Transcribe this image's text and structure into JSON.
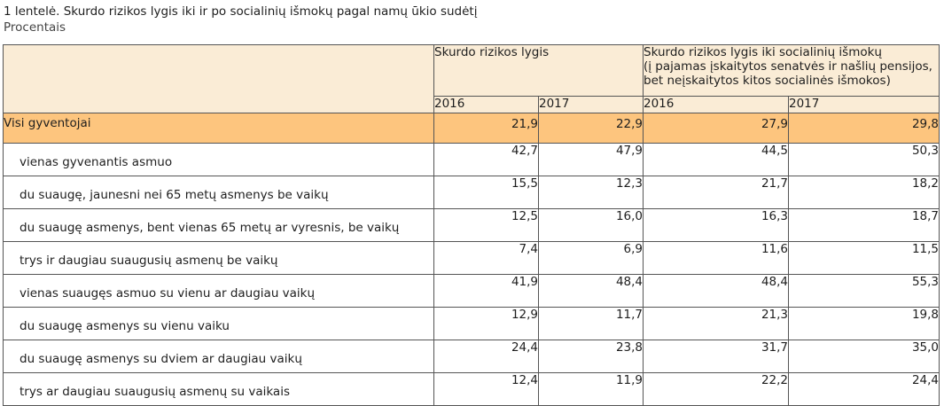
{
  "title": "1 lentelė. Skurdo rizikos lygis iki ir po socialinių išmokų pagal namų ūkio sudėtį",
  "subtitle": "Procentais",
  "header": {
    "group1": "Skurdo rizikos lygis",
    "group2_line1": "Skurdo rizikos lygis iki socialinių išmokų",
    "group2_line2": "(į pajamas įskaitytos senatvės ir našlių pensijos,",
    "group2_line3": "bet neįskaitytos kitos socialinės išmokos)",
    "years": [
      "2016",
      "2017",
      "2016",
      "2017"
    ]
  },
  "total": {
    "label": "Visi gyventojai",
    "values": [
      "21,9",
      "22,9",
      "27,9",
      "29,8"
    ]
  },
  "rows": [
    {
      "label": "vienas gyvenantis asmuo",
      "values": [
        "42,7",
        "47,9",
        "44,5",
        "50,3"
      ]
    },
    {
      "label": "du suaugę, jaunesni nei 65 metų asmenys be vaikų",
      "values": [
        "15,5",
        "12,3",
        "21,7",
        "18,2"
      ]
    },
    {
      "label": "du suaugę asmenys, bent vienas 65 metų ar vyresnis, be vaikų",
      "values": [
        "12,5",
        "16,0",
        "16,3",
        "18,7"
      ]
    },
    {
      "label": "trys ir daugiau suaugusių asmenų be vaikų",
      "values": [
        "7,4",
        "6,9",
        "11,6",
        "11,5"
      ]
    },
    {
      "label": "vienas suaugęs asmuo su vienu ar daugiau vaikų",
      "values": [
        "41,9",
        "48,4",
        "48,4",
        "55,3"
      ]
    },
    {
      "label": "du suaugę asmenys su vienu vaiku",
      "values": [
        "12,9",
        "11,7",
        "21,3",
        "19,8"
      ]
    },
    {
      "label": "du suaugę asmenys su dviem ar daugiau vaikų",
      "values": [
        "24,4",
        "23,8",
        "31,7",
        "35,0"
      ]
    },
    {
      "label": "trys ar daugiau suaugusių asmenų su vaikais",
      "values": [
        "12,4",
        "11,9",
        "22,2",
        "24,4"
      ]
    }
  ],
  "colors": {
    "header_bg": "#faecd6",
    "total_bg": "#fdc57e",
    "border": "#555555"
  }
}
